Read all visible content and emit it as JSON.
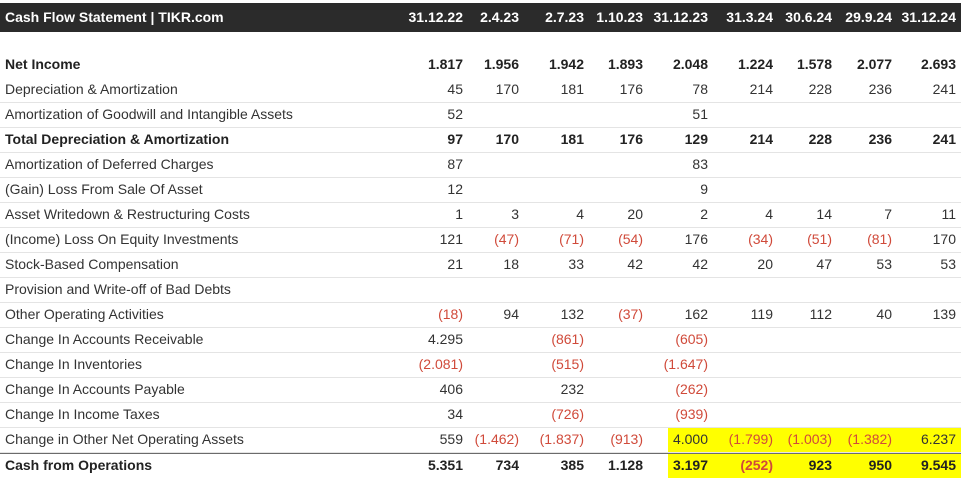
{
  "header": {
    "title": "Cash Flow Statement | TIKR.com",
    "columns": [
      "31.12.22",
      "2.4.23",
      "2.7.23",
      "1.10.23",
      "31.12.23",
      "31.3.24",
      "30.6.24",
      "29.9.24",
      "31.12.24"
    ]
  },
  "rows": [
    {
      "label": "Net Income",
      "bold": true,
      "values": [
        "1.817",
        "1.956",
        "1.942",
        "1.893",
        "2.048",
        "1.224",
        "1.578",
        "2.077",
        "2.693"
      ]
    },
    {
      "label": "Depreciation & Amortization",
      "values": [
        "45",
        "170",
        "181",
        "176",
        "78",
        "214",
        "228",
        "236",
        "241"
      ]
    },
    {
      "label": "Amortization of Goodwill and Intangible Assets",
      "values": [
        "52",
        "",
        "",
        "",
        "51",
        "",
        "",
        "",
        ""
      ]
    },
    {
      "label": "Total Depreciation & Amortization",
      "bold": true,
      "values": [
        "97",
        "170",
        "181",
        "176",
        "129",
        "214",
        "228",
        "236",
        "241"
      ]
    },
    {
      "label": "Amortization of Deferred Charges",
      "values": [
        "87",
        "",
        "",
        "",
        "83",
        "",
        "",
        "",
        ""
      ]
    },
    {
      "label": "(Gain) Loss From Sale Of Asset",
      "values": [
        "12",
        "",
        "",
        "",
        "9",
        "",
        "",
        "",
        ""
      ]
    },
    {
      "label": "Asset Writedown & Restructuring Costs",
      "values": [
        "1",
        "3",
        "4",
        "20",
        "2",
        "4",
        "14",
        "7",
        "11"
      ]
    },
    {
      "label": "(Income) Loss On Equity Investments",
      "values": [
        "121",
        "(47)",
        "(71)",
        "(54)",
        "176",
        "(34)",
        "(51)",
        "(81)",
        "170"
      ]
    },
    {
      "label": "Stock-Based Compensation",
      "values": [
        "21",
        "18",
        "33",
        "42",
        "42",
        "20",
        "47",
        "53",
        "53"
      ]
    },
    {
      "label": "Provision and Write-off of Bad Debts",
      "values": [
        "",
        "",
        "",
        "",
        "",
        "",
        "",
        "",
        ""
      ]
    },
    {
      "label": "Other Operating Activities",
      "values": [
        "(18)",
        "94",
        "132",
        "(37)",
        "162",
        "119",
        "112",
        "40",
        "139"
      ]
    },
    {
      "label": "Change In Accounts Receivable",
      "values": [
        "4.295",
        "",
        "(861)",
        "",
        "(605)",
        "",
        "",
        "",
        ""
      ]
    },
    {
      "label": "Change In Inventories",
      "values": [
        "(2.081)",
        "",
        "(515)",
        "",
        "(1.647)",
        "",
        "",
        "",
        ""
      ]
    },
    {
      "label": "Change In Accounts Payable",
      "values": [
        "406",
        "",
        "232",
        "",
        "(262)",
        "",
        "",
        "",
        ""
      ]
    },
    {
      "label": "Change In Income Taxes",
      "values": [
        "34",
        "",
        "(726)",
        "",
        "(939)",
        "",
        "",
        "",
        ""
      ]
    },
    {
      "label": "Change in Other Net Operating Assets",
      "values": [
        "559",
        "(1.462)",
        "(1.837)",
        "(913)",
        "4.000",
        "(1.799)",
        "(1.003)",
        "(1.382)",
        "6.237"
      ]
    },
    {
      "label": "Cash from Operations",
      "bold": true,
      "values": [
        "5.351",
        "734",
        "385",
        "1.128",
        "3.197",
        "(252)",
        "923",
        "950",
        "9.545"
      ]
    }
  ],
  "colors": {
    "header_bg": "#2b2b2b",
    "negative": "#d04a3a",
    "highlight": "#ffff00"
  }
}
